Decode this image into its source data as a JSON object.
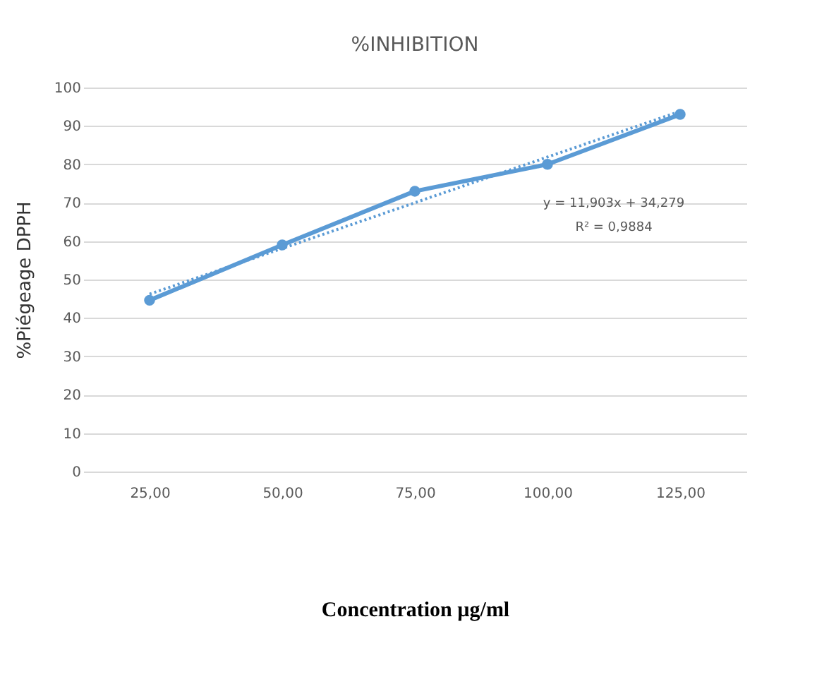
{
  "chart_data": {
    "type": "line",
    "title": "%INHIBITION",
    "xlabel": "Concentration  µg/ml",
    "ylabel": "%Piégeage DPPH",
    "categories": [
      "25,00",
      "50,00",
      "75,00",
      "100,00",
      "125,00"
    ],
    "series": [
      {
        "color": "#5b9bd5",
        "values": [
          44.6,
          59,
          73,
          80,
          93
        ],
        "marker": "circle",
        "line_style": "solid"
      },
      {
        "type": "line",
        "color": "#5b9bd5",
        "values": [
          46.2,
          58.1,
          70.0,
          81.9,
          93.8
        ],
        "marker": "none",
        "line_style": "dotted"
      }
    ],
    "annotations": [
      "y = 11,903x + 34,279",
      "R² = 0,9884"
    ],
    "ylim": [
      0,
      100
    ],
    "yticks": [
      0,
      10,
      20,
      30,
      40,
      50,
      60,
      70,
      80,
      90,
      100
    ],
    "grid": "y"
  }
}
